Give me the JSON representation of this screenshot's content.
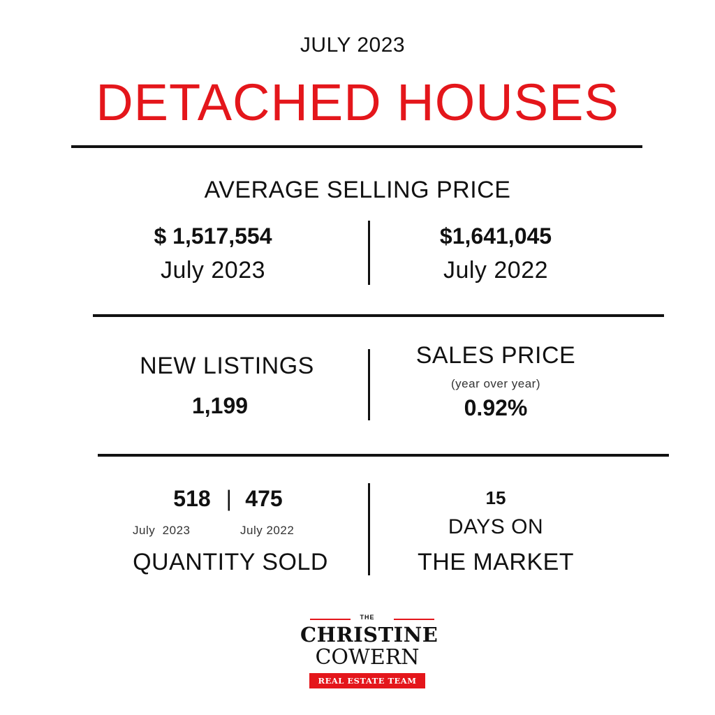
{
  "header": {
    "kicker": "JULY 2023",
    "title": "DETACHED HOUSES"
  },
  "avg_price": {
    "label": "AVERAGE SELLING PRICE",
    "current": {
      "value": "$ 1,517,554",
      "period": "July 2023"
    },
    "previous": {
      "value": "$1,641,045",
      "period": "July 2022"
    }
  },
  "new_listings": {
    "label": "NEW LISTINGS",
    "value": "1,199"
  },
  "sales_price": {
    "label": "SALES PRICE",
    "note": "(year over year)",
    "value": "0.92%"
  },
  "quantity_sold": {
    "current_value": "518",
    "separator": "|",
    "previous_value": "475",
    "current_period": "July  2023",
    "previous_period": "July 2022",
    "label": "QUANTITY SOLD"
  },
  "days_on_market": {
    "value": "15",
    "label_line1": "DAYS ON",
    "label_line2": "THE MARKET"
  },
  "logo": {
    "the": "THE",
    "name1": "CHRISTINE",
    "name2": "COWERN",
    "tagline": "REAL ESTATE TEAM"
  },
  "colors": {
    "accent": "#e4161b",
    "text": "#111111",
    "background": "#ffffff"
  }
}
